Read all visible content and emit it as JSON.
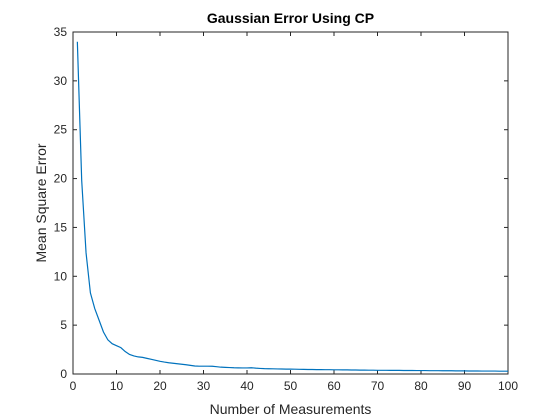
{
  "chart_data": {
    "type": "line",
    "title": "Gaussian Error Using CP",
    "xlabel": "Number of Measurements",
    "ylabel": "Mean Square Error",
    "xlim": [
      0,
      100
    ],
    "ylim": [
      0,
      35
    ],
    "xticks": [
      0,
      10,
      20,
      30,
      40,
      50,
      60,
      70,
      80,
      90,
      100
    ],
    "yticks": [
      0,
      5,
      10,
      15,
      20,
      25,
      30,
      35
    ],
    "grid": false,
    "line_color": "#0072BD",
    "series": [
      {
        "x": [
          1,
          2,
          3,
          4,
          5,
          6,
          7,
          8,
          9,
          10,
          11,
          12,
          13,
          14,
          15,
          16,
          17,
          18,
          19,
          20,
          21,
          22,
          23,
          24,
          25,
          26,
          27,
          28,
          29,
          30,
          31,
          32,
          33,
          34,
          35,
          36,
          37,
          38,
          39,
          40,
          41,
          42,
          43,
          44,
          45,
          46,
          47,
          48,
          49,
          50,
          51,
          52,
          53,
          54,
          55,
          56,
          57,
          58,
          59,
          60,
          61,
          62,
          63,
          64,
          65,
          66,
          67,
          68,
          69,
          70,
          71,
          72,
          73,
          74,
          75,
          76,
          77,
          78,
          79,
          80,
          81,
          82,
          83,
          84,
          85,
          86,
          87,
          88,
          89,
          90,
          91,
          92,
          93,
          94,
          95,
          96,
          97,
          98,
          99,
          100
        ],
        "values": [
          34,
          19.8,
          12.4,
          8.3,
          6.7,
          5.5,
          4.3,
          3.5,
          3.1,
          2.9,
          2.7,
          2.3,
          2.0,
          1.85,
          1.75,
          1.7,
          1.6,
          1.5,
          1.4,
          1.3,
          1.22,
          1.15,
          1.1,
          1.05,
          1.0,
          0.95,
          0.88,
          0.82,
          0.8,
          0.8,
          0.8,
          0.79,
          0.75,
          0.7,
          0.68,
          0.66,
          0.64,
          0.63,
          0.62,
          0.62,
          0.64,
          0.6,
          0.57,
          0.55,
          0.54,
          0.53,
          0.52,
          0.51,
          0.5,
          0.5,
          0.49,
          0.48,
          0.47,
          0.46,
          0.46,
          0.45,
          0.45,
          0.44,
          0.44,
          0.43,
          0.43,
          0.42,
          0.42,
          0.41,
          0.41,
          0.4,
          0.4,
          0.39,
          0.39,
          0.38,
          0.38,
          0.38,
          0.37,
          0.37,
          0.37,
          0.36,
          0.36,
          0.36,
          0.35,
          0.35,
          0.35,
          0.34,
          0.34,
          0.34,
          0.33,
          0.33,
          0.33,
          0.32,
          0.32,
          0.32,
          0.31,
          0.31,
          0.31,
          0.3,
          0.3,
          0.3,
          0.3,
          0.29,
          0.29,
          0.29
        ]
      }
    ]
  }
}
